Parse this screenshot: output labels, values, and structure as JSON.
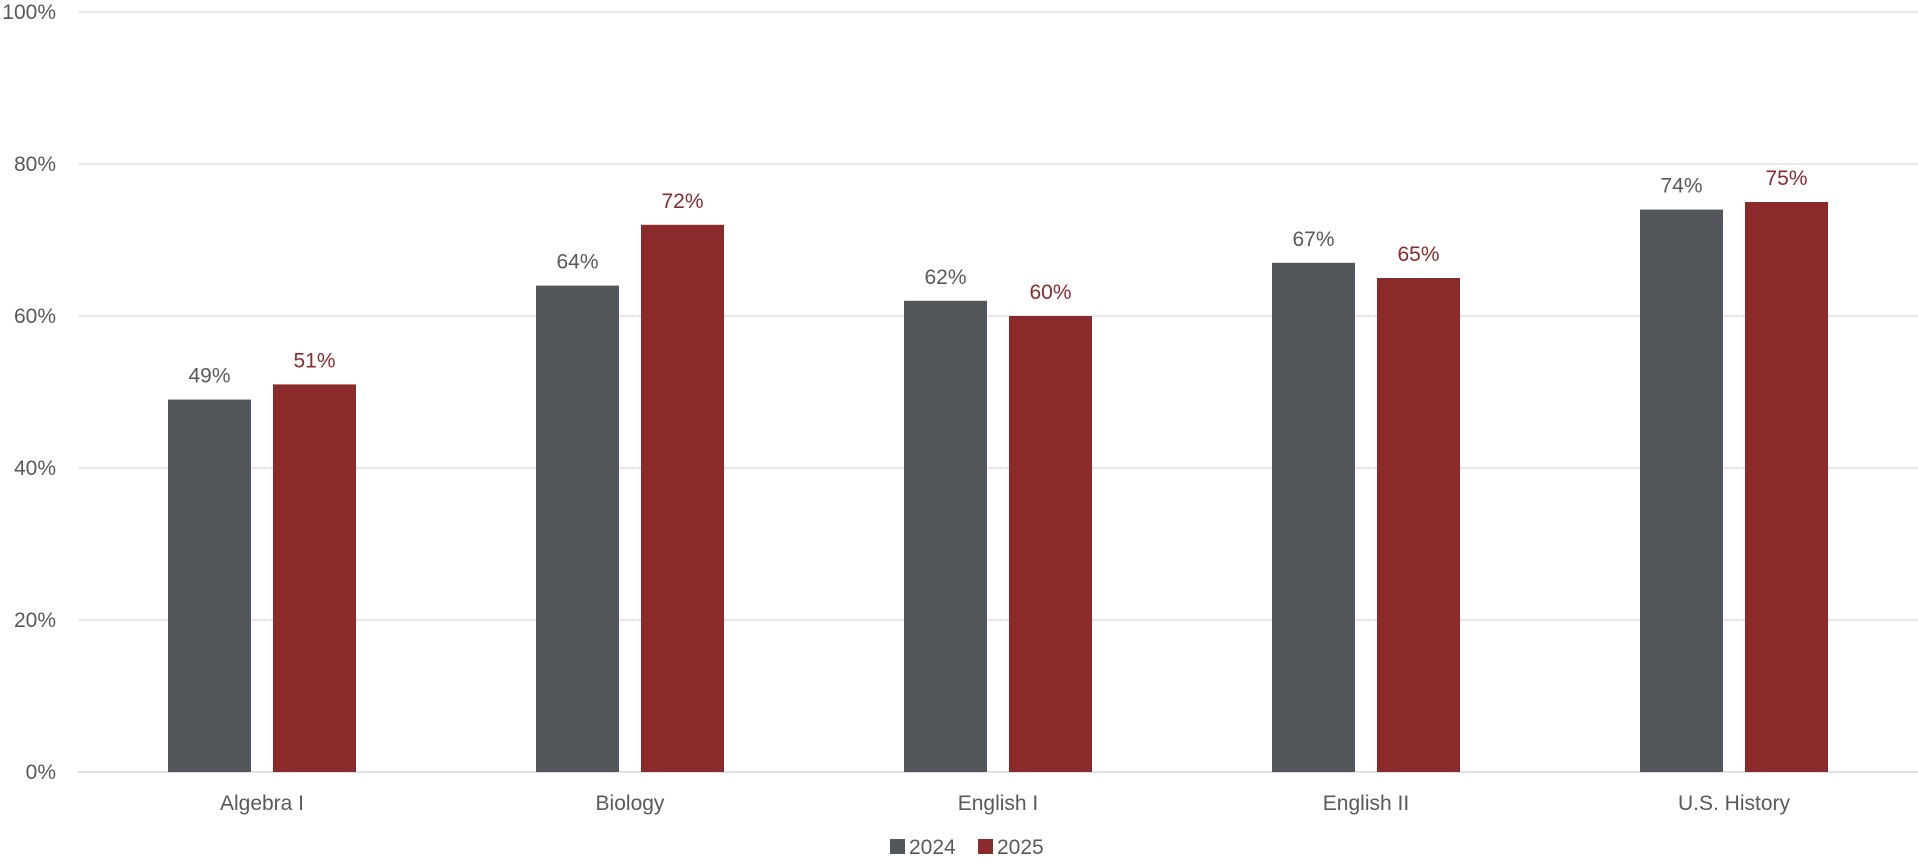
{
  "chart_data": {
    "type": "bar",
    "categories": [
      "Algebra I",
      "Biology",
      "English I",
      "English II",
      "U.S. History"
    ],
    "series": [
      {
        "name": "2024",
        "values": [
          49,
          64,
          62,
          67,
          74
        ],
        "labels": [
          "49%",
          "64%",
          "62%",
          "67%",
          "74%"
        ],
        "color": "#53565a",
        "label_color": "#595959"
      },
      {
        "name": "2025",
        "values": [
          51,
          72,
          60,
          65,
          75
        ],
        "labels": [
          "51%",
          "72%",
          "60%",
          "65%",
          "75%"
        ],
        "color": "#8b2a2b",
        "label_color": "#8b2a2b"
      }
    ],
    "ylim": [
      0,
      100
    ],
    "yticks": [
      0,
      20,
      40,
      60,
      80,
      100
    ],
    "ytick_labels": [
      "0%",
      "20%",
      "40%",
      "60%",
      "80%",
      "100%"
    ],
    "title": "",
    "xlabel": "",
    "ylabel": "",
    "grid": true,
    "gridline_color": "#d9d9d9",
    "legend_position": "bottom-center"
  }
}
